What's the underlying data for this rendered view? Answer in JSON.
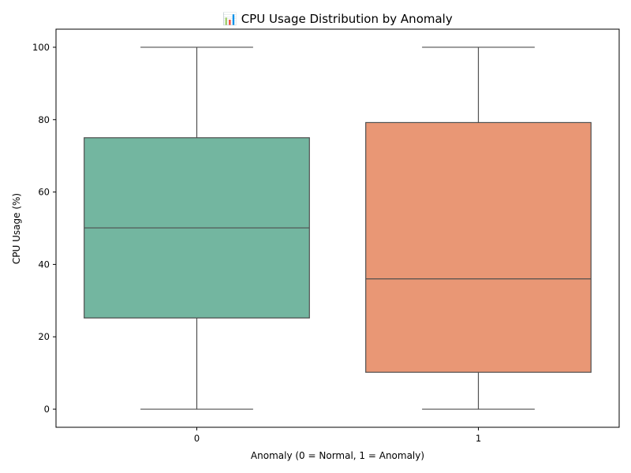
{
  "chart_data": {
    "type": "box",
    "title": "📊 CPU Usage Distribution by Anomaly",
    "xlabel": "Anomaly (0 = Normal, 1 = Anomaly)",
    "ylabel": "CPU Usage (%)",
    "ylim": [
      -5,
      105
    ],
    "yticks": [
      0,
      20,
      40,
      60,
      80,
      100
    ],
    "grid": false,
    "categories": [
      "0",
      "1"
    ],
    "boxes": [
      {
        "category": "0",
        "min": 0,
        "q1": 25.2,
        "median": 50.1,
        "q3": 75.0,
        "max": 100,
        "color": "#73b6a0"
      },
      {
        "category": "1",
        "min": 0,
        "q1": 10.2,
        "median": 36.0,
        "q3": 79.2,
        "max": 100,
        "color": "#e99775"
      }
    ],
    "colors": {
      "line": "#4f4f4f",
      "frame": "#000000"
    }
  }
}
